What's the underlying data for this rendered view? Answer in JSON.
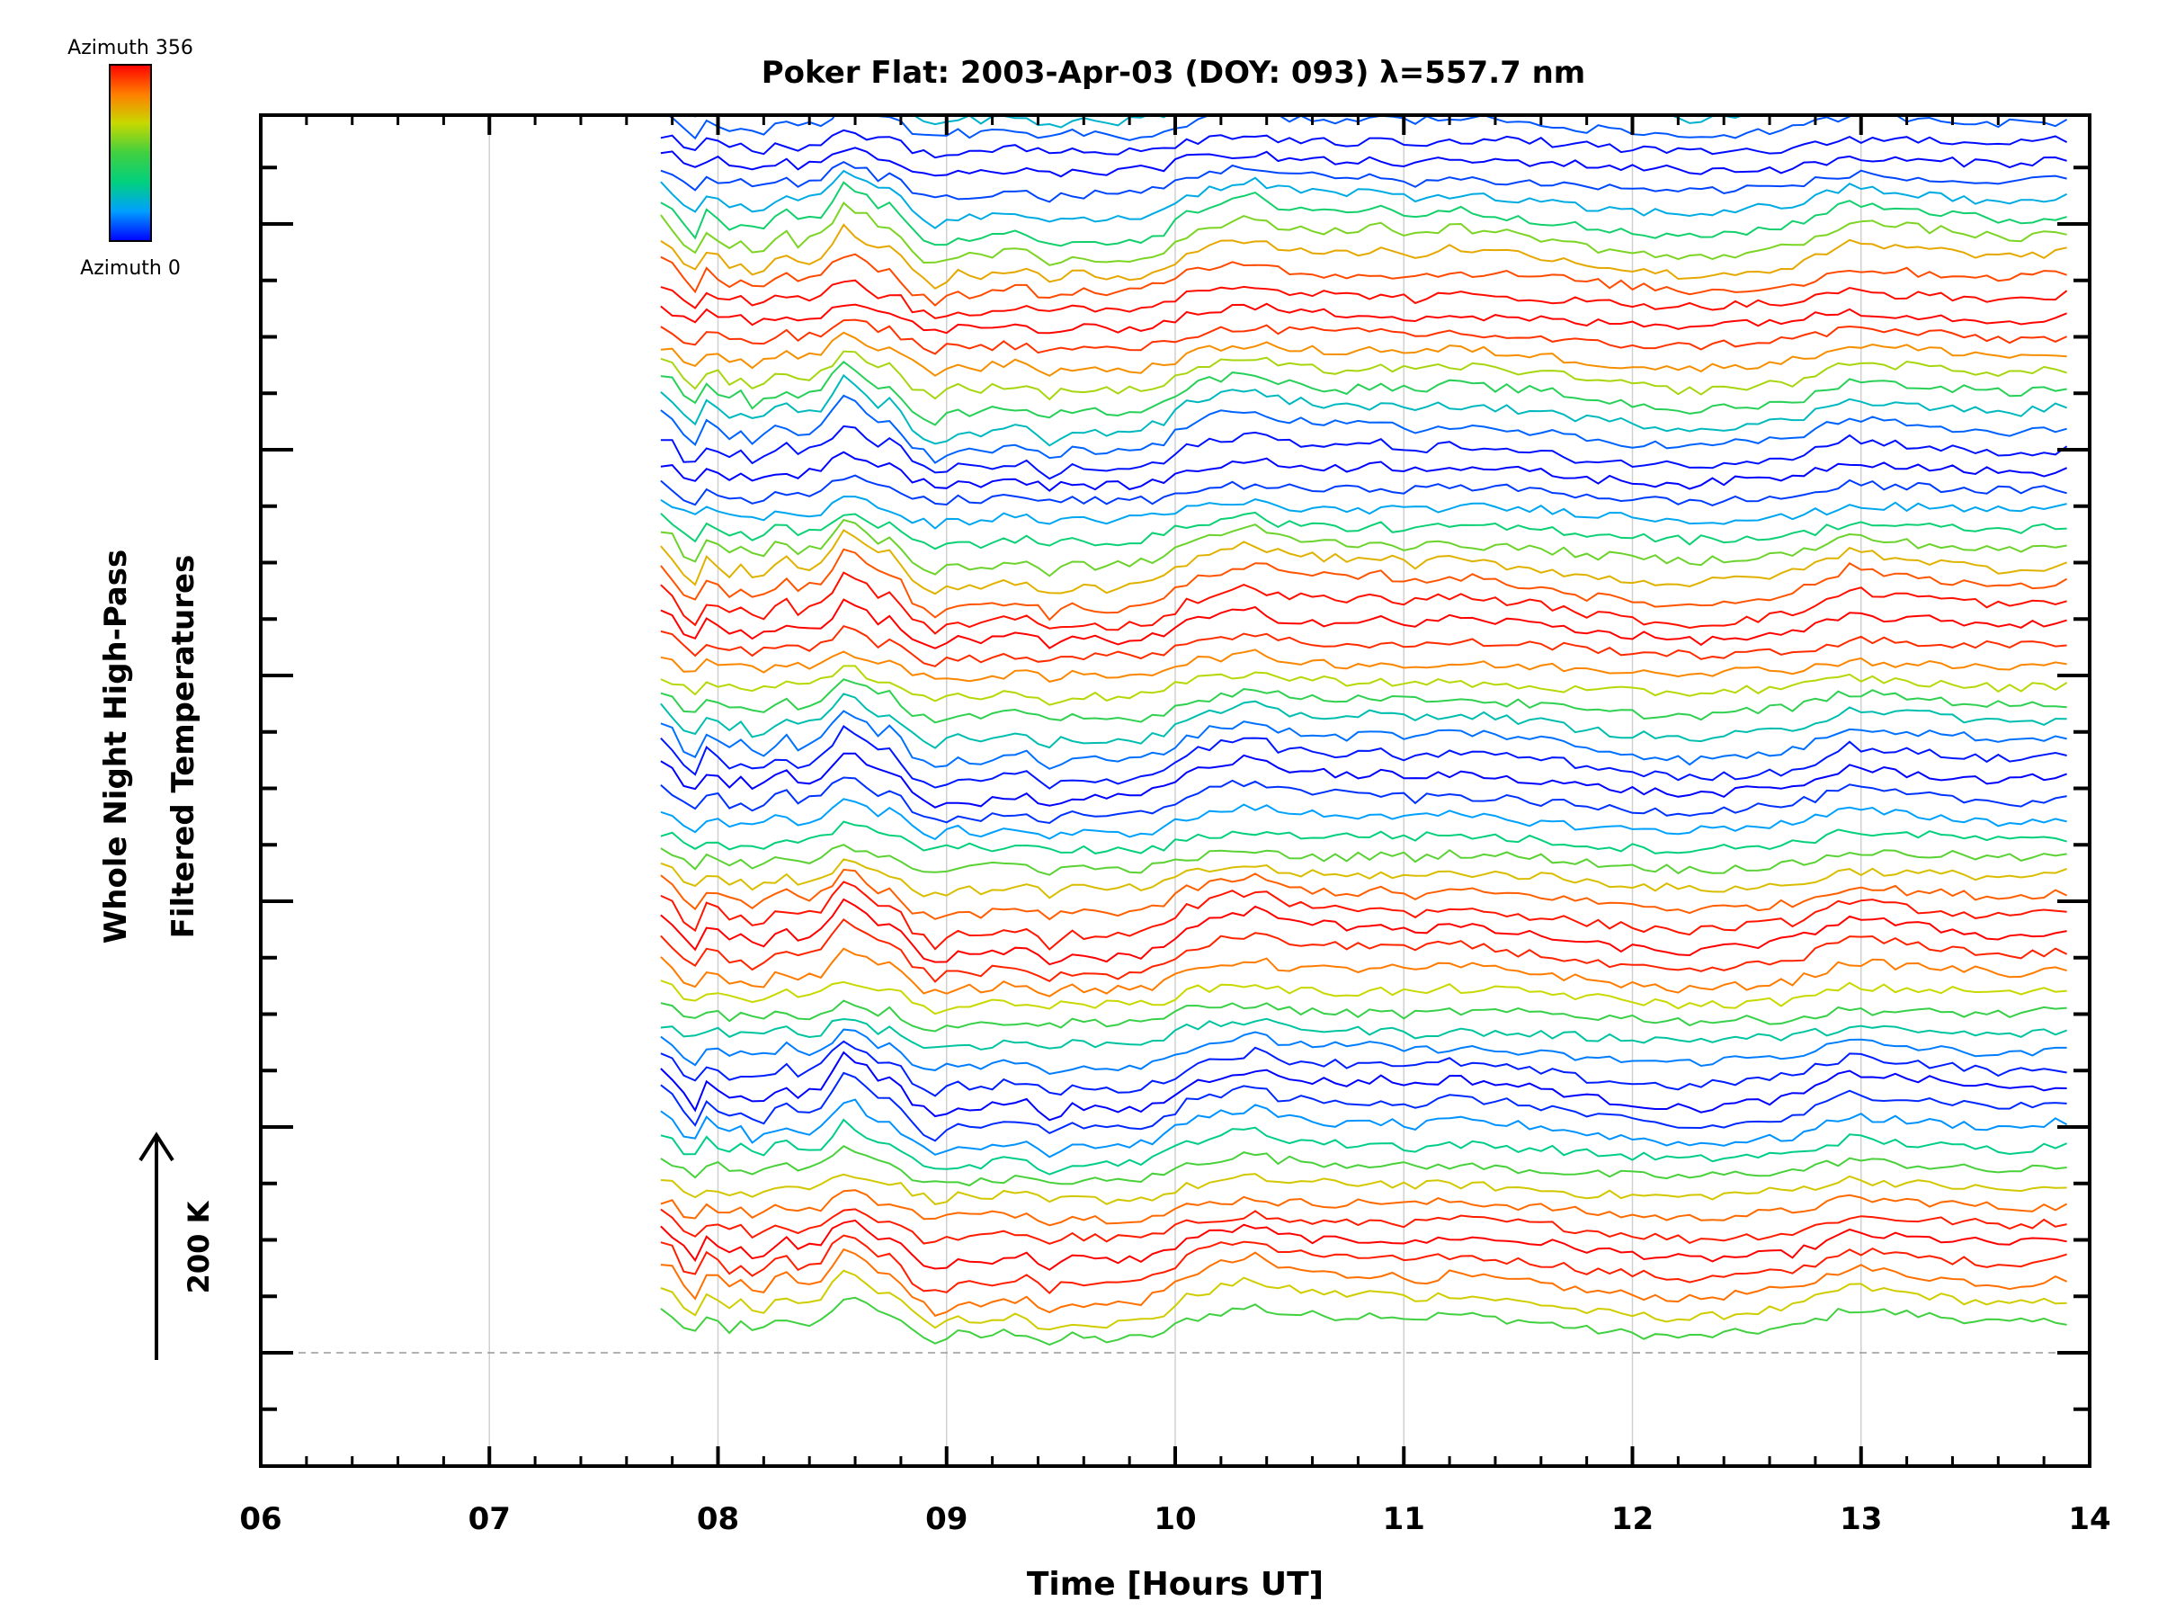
{
  "chart_data": {
    "type": "line",
    "title": "Poker Flat: 2003-Apr-03 (DOY: 093) λ=557.7 nm",
    "xlabel": "Time [Hours UT]",
    "ylabel_line1": "Whole Night High-Pass",
    "ylabel_line2": "Filtered Temperatures",
    "scale_label": "200 K",
    "scale_kelvin": 200,
    "xlim": [
      6,
      14
    ],
    "x_ticks": [
      "06",
      "07",
      "08",
      "09",
      "10",
      "11",
      "12",
      "13",
      "14"
    ],
    "colorbar": {
      "top_label": "Azimuth 356",
      "bottom_label": "Azimuth 0",
      "min": 0,
      "max": 356,
      "colors": [
        "#0000ff",
        "#00a0ff",
        "#00d080",
        "#40d040",
        "#c8d800",
        "#ff8000",
        "#ff0000"
      ]
    },
    "grid": true,
    "stack_note": "64 azimuth traces, stacked, each offset upward",
    "series_count": 64,
    "time_start": 7.75,
    "time_end": 13.93,
    "time_step": 0.05,
    "common_signal": {
      "baseline": [
        [
          7.75,
          35
        ],
        [
          7.82,
          20
        ],
        [
          7.88,
          -25
        ],
        [
          7.92,
          -5
        ],
        [
          7.96,
          25
        ],
        [
          8.0,
          10
        ],
        [
          8.05,
          -5
        ],
        [
          8.1,
          5
        ],
        [
          8.15,
          -10
        ],
        [
          8.22,
          -5
        ],
        [
          8.28,
          20
        ],
        [
          8.35,
          0
        ],
        [
          8.45,
          10
        ],
        [
          8.55,
          55
        ],
        [
          8.62,
          45
        ],
        [
          8.7,
          20
        ],
        [
          8.76,
          25
        ],
        [
          8.85,
          -15
        ],
        [
          8.95,
          -35
        ],
        [
          9.05,
          -20
        ],
        [
          9.15,
          -25
        ],
        [
          9.25,
          -15
        ],
        [
          9.35,
          -15
        ],
        [
          9.45,
          -35
        ],
        [
          9.55,
          -20
        ],
        [
          9.7,
          -25
        ],
        [
          9.85,
          -20
        ],
        [
          9.95,
          -10
        ],
        [
          10.05,
          15
        ],
        [
          10.2,
          30
        ],
        [
          10.35,
          40
        ],
        [
          10.45,
          25
        ],
        [
          10.6,
          20
        ],
        [
          10.75,
          15
        ],
        [
          10.9,
          20
        ],
        [
          11.05,
          10
        ],
        [
          11.2,
          20
        ],
        [
          11.35,
          15
        ],
        [
          11.5,
          10
        ],
        [
          11.65,
          5
        ],
        [
          11.8,
          -5
        ],
        [
          11.95,
          -10
        ],
        [
          12.1,
          -15
        ],
        [
          12.25,
          -20
        ],
        [
          12.4,
          -15
        ],
        [
          12.55,
          -10
        ],
        [
          12.7,
          -5
        ],
        [
          12.85,
          15
        ],
        [
          12.95,
          30
        ],
        [
          13.05,
          25
        ],
        [
          13.2,
          20
        ],
        [
          13.35,
          15
        ],
        [
          13.5,
          10
        ],
        [
          13.65,
          5
        ],
        [
          13.8,
          10
        ],
        [
          13.93,
          15
        ]
      ]
    }
  }
}
